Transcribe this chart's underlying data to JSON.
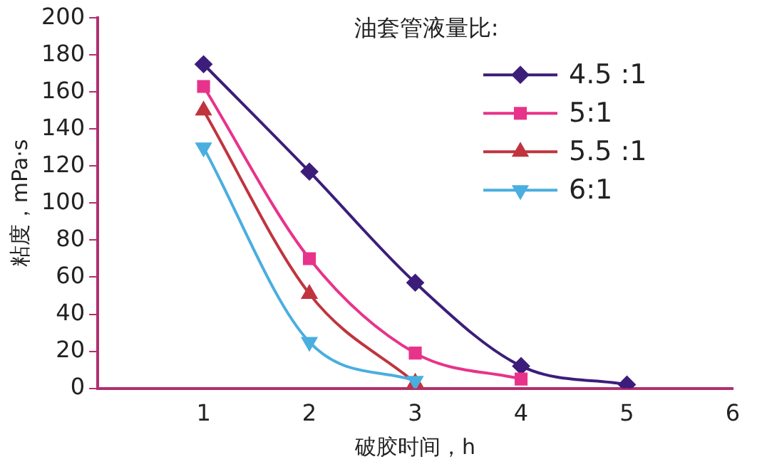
{
  "chart_data": {
    "type": "line",
    "xlabel": "破胶时间，h",
    "ylabel": "粘度，mPa·s",
    "legend_title": "油套管液量比:",
    "legend": "top right",
    "grid": false,
    "line_style": "solid",
    "xlim": [
      0,
      6
    ],
    "xticks": [
      1,
      2,
      3,
      4,
      5,
      6
    ],
    "ylim": [
      0,
      200
    ],
    "yticks": [
      0,
      20,
      40,
      60,
      80,
      100,
      120,
      140,
      160,
      180,
      200
    ],
    "series": [
      {
        "name": "4.5 :1",
        "color": "#3c1d7a",
        "marker": "diamond",
        "x": [
          1,
          2,
          3,
          4,
          5
        ],
        "values": [
          175,
          117,
          57,
          12,
          2
        ]
      },
      {
        "name": "5:1",
        "color": "#e8338a",
        "marker": "square",
        "x": [
          1,
          2,
          3,
          4
        ],
        "values": [
          163,
          70,
          19,
          5
        ]
      },
      {
        "name": "5.5 :1",
        "color": "#c0343f",
        "marker": "triangle",
        "x": [
          1,
          2,
          3
        ],
        "values": [
          150,
          51,
          3
        ]
      },
      {
        "name": "6:1",
        "color": "#4aaee0",
        "marker": "triangle-down",
        "x": [
          1,
          2,
          3
        ],
        "values": [
          130,
          25,
          4
        ]
      }
    ]
  }
}
